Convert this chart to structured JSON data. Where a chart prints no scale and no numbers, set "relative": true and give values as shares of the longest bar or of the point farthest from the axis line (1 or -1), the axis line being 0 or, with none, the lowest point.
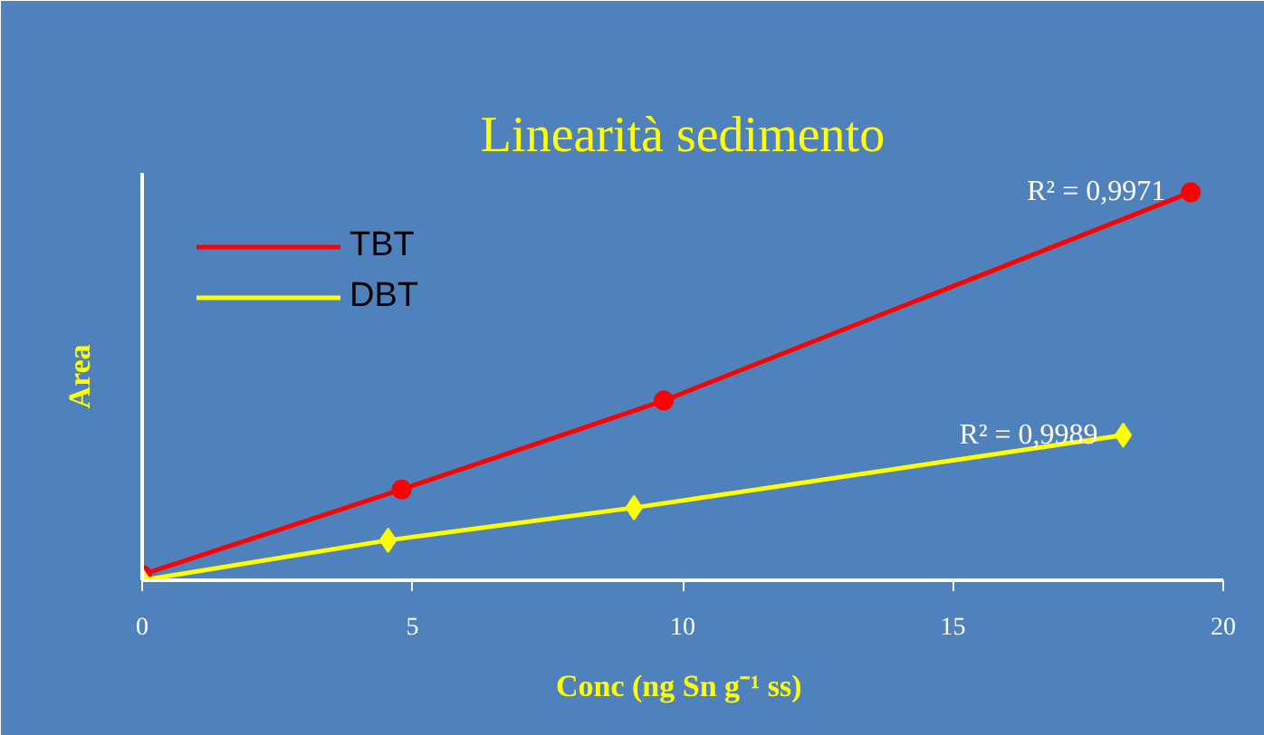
{
  "chart_data": {
    "type": "line",
    "title": "Linearità sedimento",
    "xlabel": "Conc  (ng Sn g⁻¹ ss)",
    "ylabel": "Area",
    "relative": true,
    "xlim": [
      0,
      20
    ],
    "xticks": [
      0,
      5,
      10,
      15,
      20
    ],
    "grid": false,
    "legend": "top left",
    "series": [
      {
        "name": "TBT",
        "color": "#ff0000",
        "marker": "circle",
        "x": [
          0,
          4.8,
          9.65,
          19.4
        ],
        "values": [
          0.014,
          0.234,
          0.463,
          1
        ]
      },
      {
        "name": "DBT",
        "color": "#ffff00",
        "marker": "diamond",
        "x": [
          0,
          4.55,
          9.1,
          18.15
        ],
        "values": [
          0,
          0.103,
          0.187,
          0.374
        ]
      }
    ],
    "annotations": [
      "R² = 0,9971",
      "R² = 0,9989"
    ]
  }
}
